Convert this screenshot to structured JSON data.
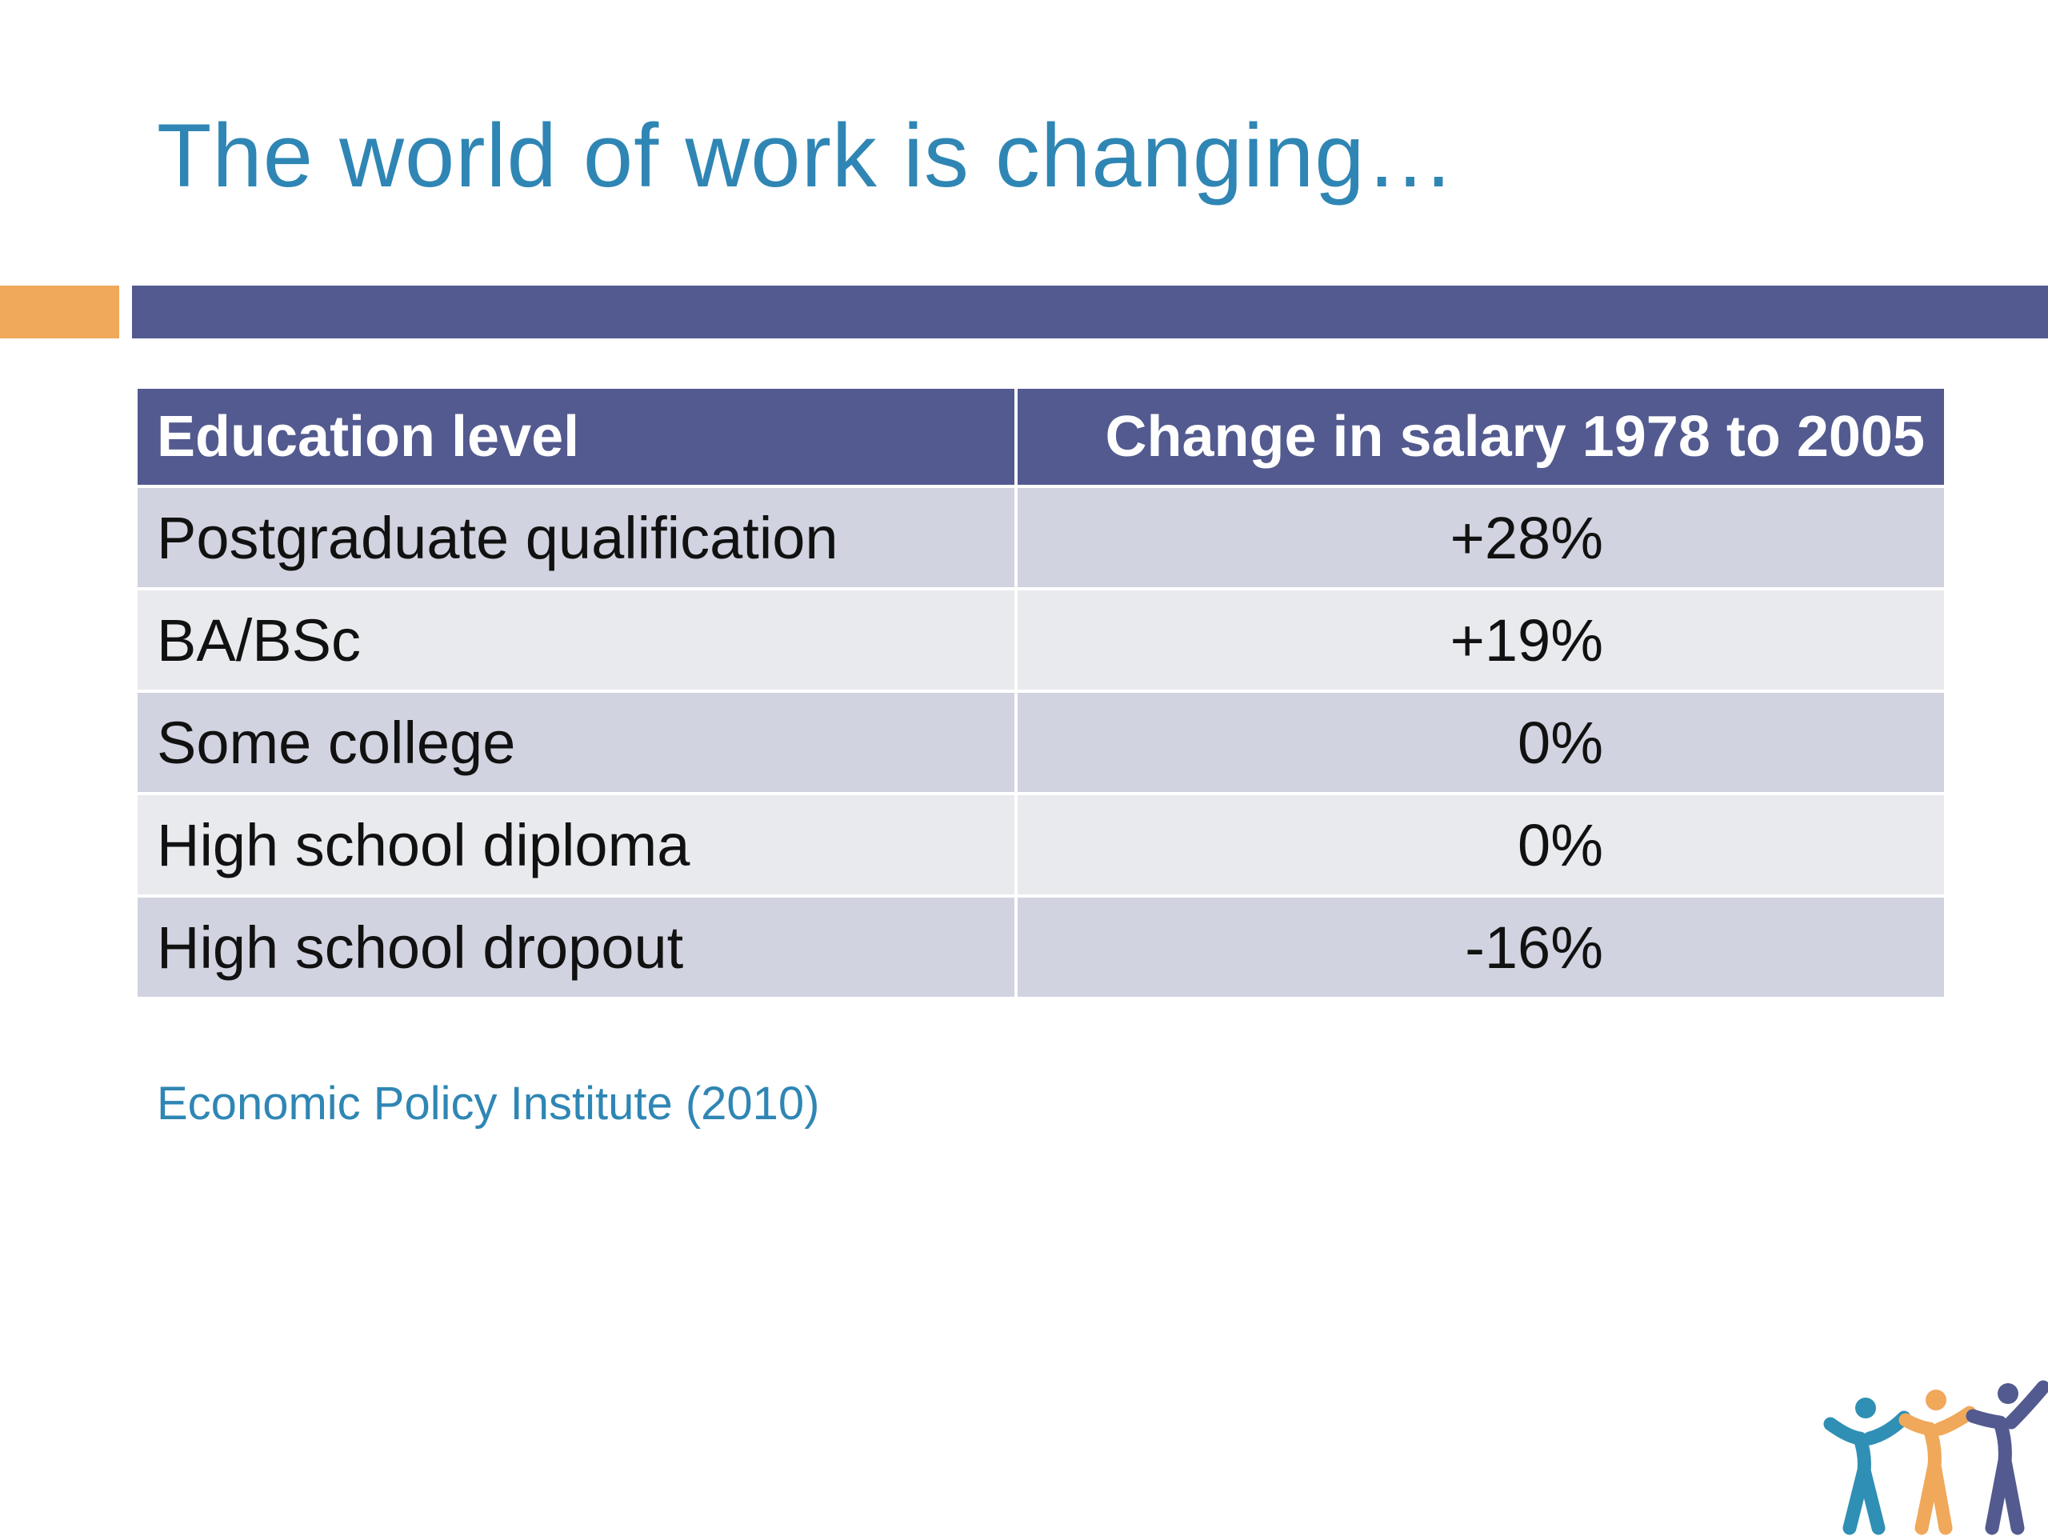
{
  "slide": {
    "title": "The world of work is changing…",
    "source": "Economic Policy Institute (2010)"
  },
  "colors": {
    "title": "#2f86b4",
    "accent_orange": "#f0a85a",
    "bar_blue": "#525a8f",
    "header_bg": "#525a8f",
    "row_odd": "#d1d3e0",
    "row_even": "#e9eaee",
    "logo_teal": "#2f8fb4",
    "logo_orange": "#f0a85a",
    "logo_blue": "#525a8f"
  },
  "table": {
    "headers": [
      "Education level",
      "Change in salary 1978 to 2005"
    ],
    "rows": [
      {
        "education": "Postgraduate qualification",
        "change": "+28%"
      },
      {
        "education": "BA/BSc",
        "change": "+19%"
      },
      {
        "education": "Some college",
        "change": "0%"
      },
      {
        "education": "High school diploma",
        "change": "0%"
      },
      {
        "education": "High school dropout",
        "change": "-16%"
      }
    ]
  },
  "logo": {
    "icon": "three-people-cheering-icon"
  }
}
